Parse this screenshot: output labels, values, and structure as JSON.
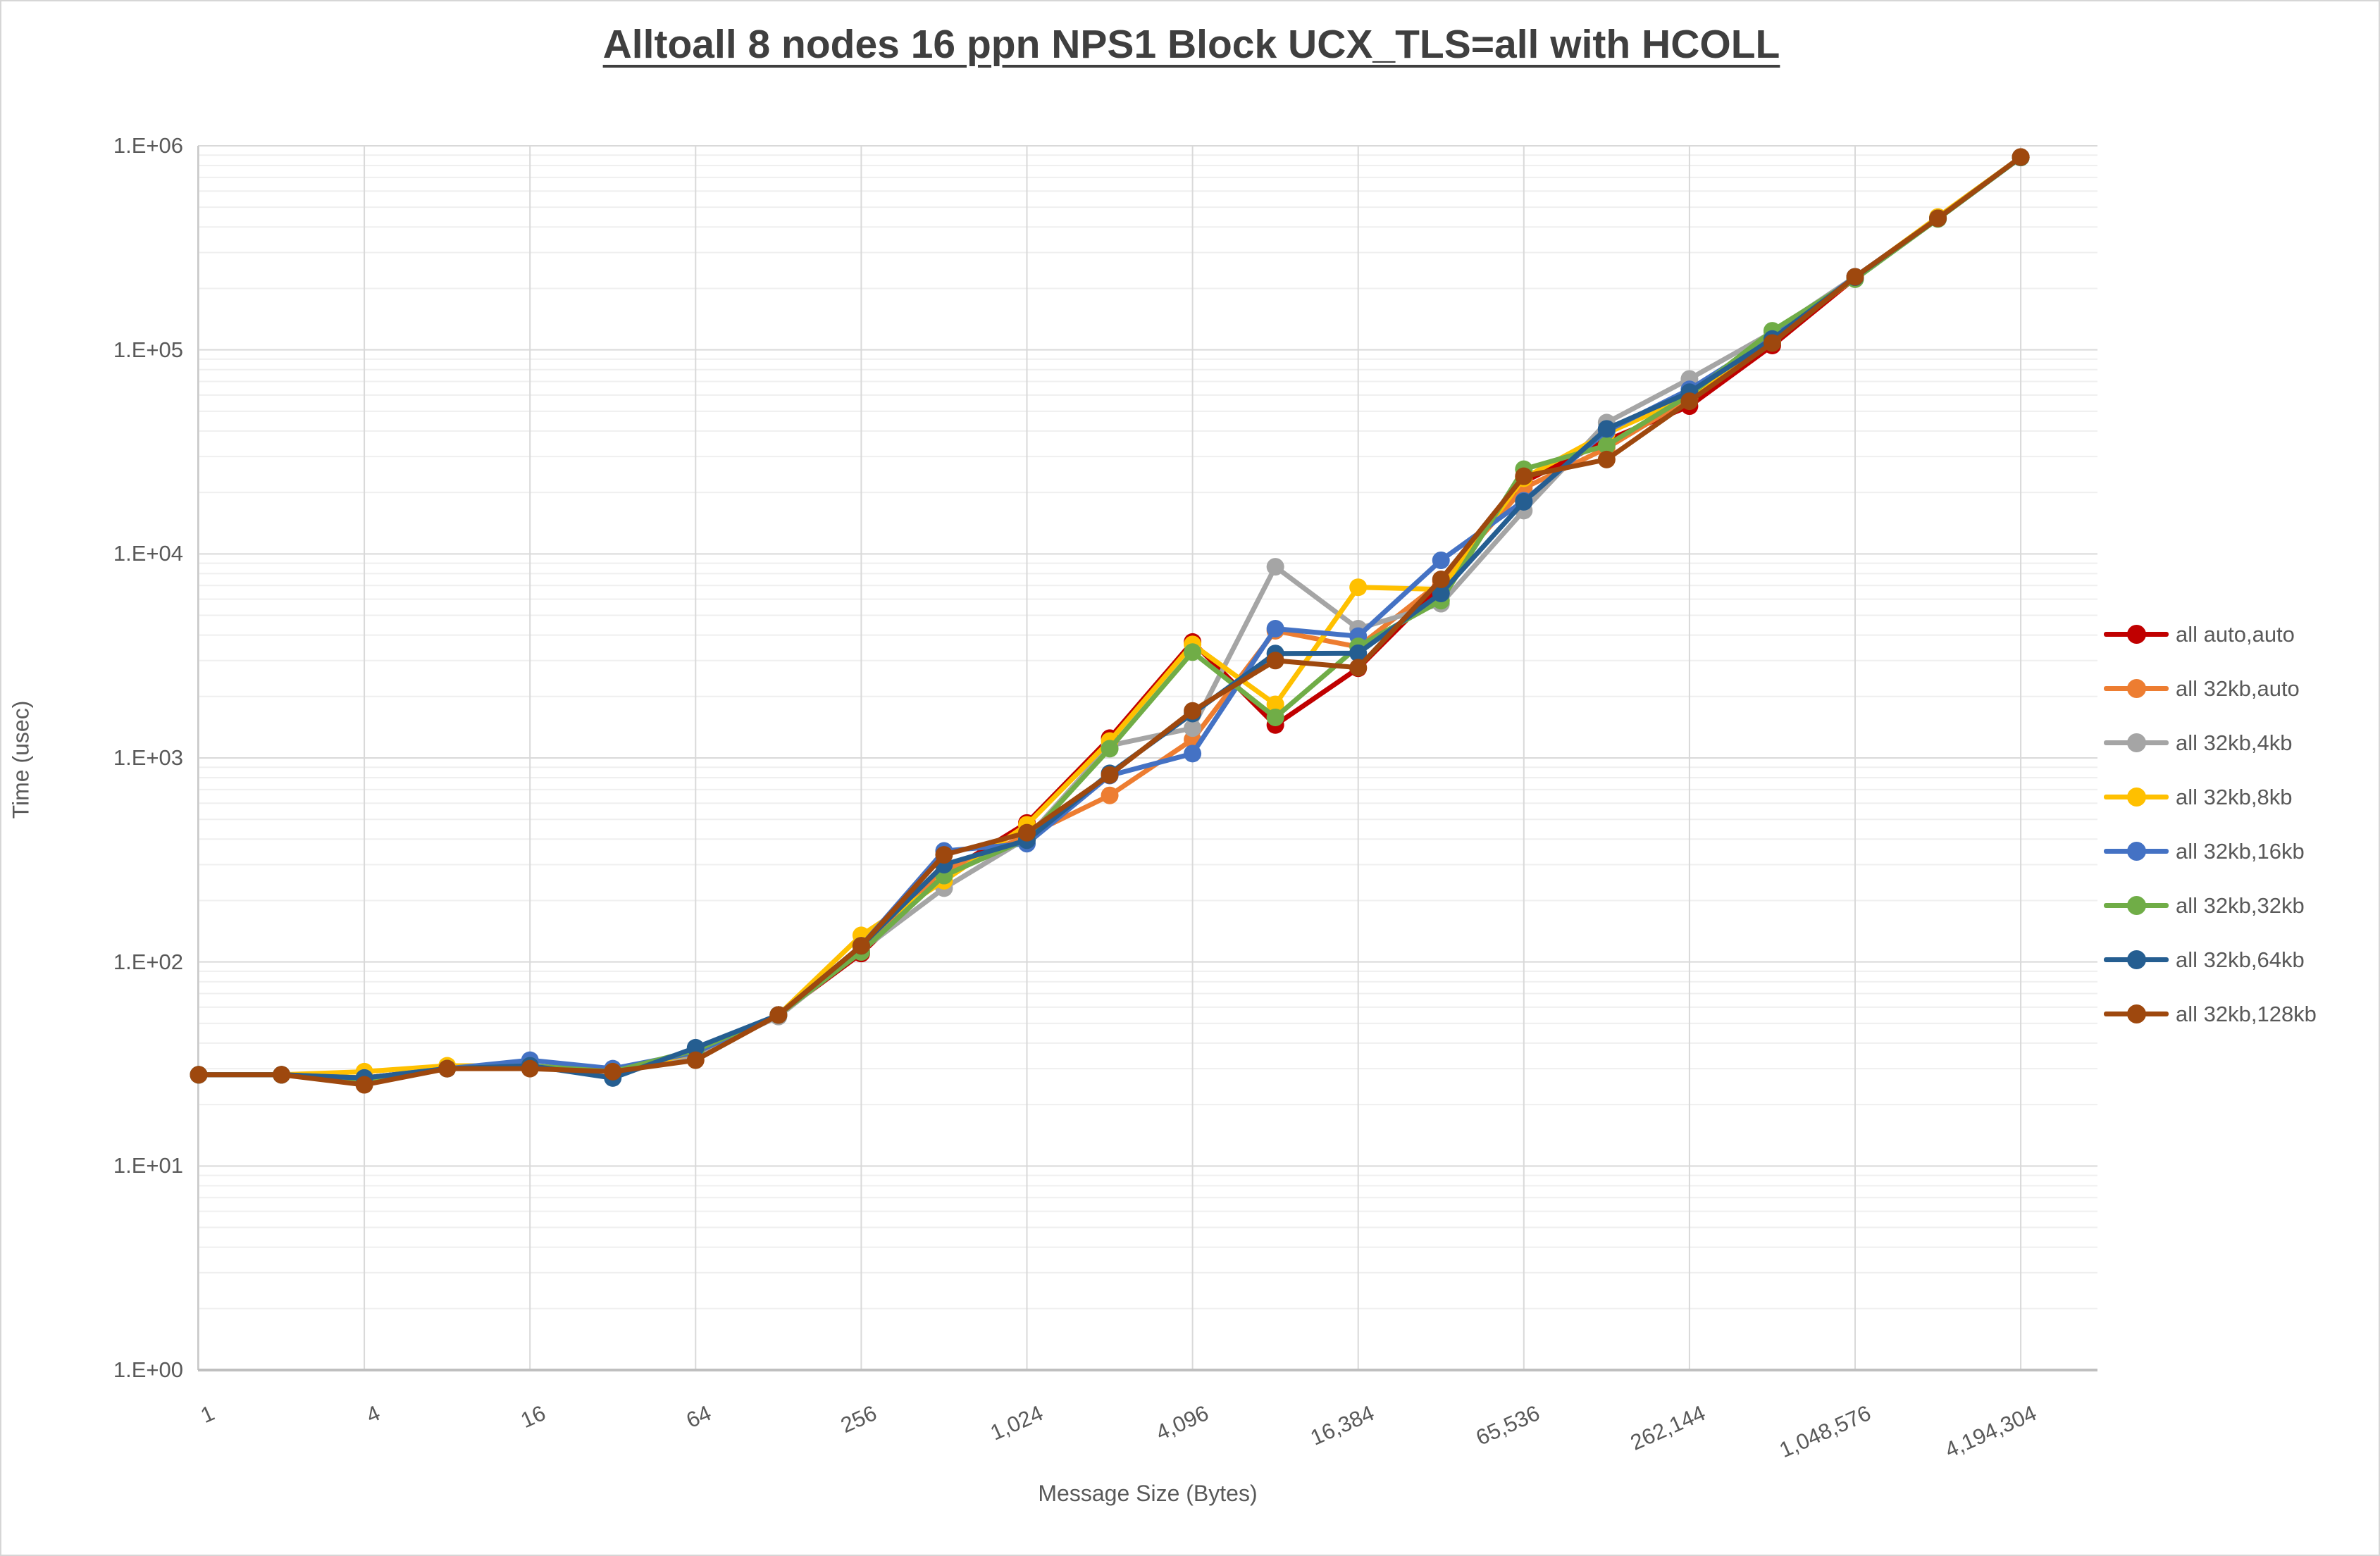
{
  "chart_data": {
    "type": "line",
    "title": "Alltoall 8 nodes 16 ppn NPS1 Block UCX_TLS=all with HCOLL",
    "xlabel": "Message Size (Bytes)",
    "ylabel": "Time (usec)",
    "x_scale": "log2",
    "y_scale": "log10",
    "ylim": [
      1,
      1000000
    ],
    "grid": "major-horizontal-minor-log-and-major-vertical",
    "legend_position": "right",
    "x": [
      1,
      2,
      4,
      8,
      16,
      32,
      64,
      128,
      256,
      512,
      1024,
      2048,
      4096,
      8192,
      16384,
      32768,
      65536,
      131072,
      262144,
      524288,
      1048576,
      2097152,
      4194304
    ],
    "x_tick_labels": [
      "1",
      "4",
      "16",
      "64",
      "256",
      "1,024",
      "4,096",
      "16,384",
      "65,536",
      "262,144",
      "1,048,576",
      "4,194,304"
    ],
    "y_tick_labels": [
      "1.E+00",
      "1.E+01",
      "1.E+02",
      "1.E+03",
      "1.E+04",
      "1.E+05",
      "1.E+06"
    ],
    "series": [
      {
        "name": "all auto,auto",
        "color": "#C00000",
        "values": [
          28,
          28,
          27,
          30,
          31,
          29,
          36,
          55,
          110,
          270,
          480,
          1250,
          3700,
          1450,
          2750,
          7000,
          22500,
          36000,
          53000,
          105000,
          225000,
          440000,
          880000
        ]
      },
      {
        "name": "all 32kb,auto",
        "color": "#ED7D31",
        "values": [
          28,
          28,
          27,
          30,
          31,
          29,
          36,
          55,
          118,
          280,
          415,
          655,
          1230,
          4200,
          3500,
          7300,
          21000,
          33000,
          58000,
          111000,
          225000,
          440000,
          880000
        ]
      },
      {
        "name": "all 32kb,4kb",
        "color": "#A5A5A5",
        "values": [
          28,
          28,
          26,
          30,
          31,
          29,
          35,
          54,
          114,
          230,
          405,
          1150,
          1400,
          8650,
          4300,
          5700,
          16300,
          44000,
          72000,
          122000,
          228000,
          442000,
          878000
        ]
      },
      {
        "name": "all 32kb,8kb",
        "color": "#FFC000",
        "values": [
          28,
          28,
          29,
          31,
          31,
          29,
          36,
          55,
          135,
          250,
          470,
          1210,
          3600,
          1830,
          6860,
          6700,
          23500,
          39000,
          59000,
          112000,
          226000,
          448000,
          880000
        ]
      },
      {
        "name": "all 32kb,16kb",
        "color": "#4472C4",
        "values": [
          28,
          28,
          27,
          30,
          33,
          30,
          36,
          55,
          120,
          350,
          380,
          820,
          1050,
          4300,
          3950,
          9300,
          18200,
          40000,
          64000,
          115000,
          228000,
          440000,
          880000
        ]
      },
      {
        "name": "all 32kb,32kb",
        "color": "#70AD47",
        "values": [
          28,
          28,
          26,
          30,
          31,
          29,
          37,
          55,
          112,
          265,
          400,
          1110,
          3300,
          1580,
          3520,
          5900,
          26000,
          34000,
          60000,
          124000,
          222000,
          438000,
          876000
        ]
      },
      {
        "name": "all 32kb,64kb",
        "color": "#255E91",
        "values": [
          28,
          28,
          27,
          30,
          31,
          27,
          38,
          55,
          120,
          300,
          395,
          840,
          1650,
          3250,
          3260,
          6400,
          18000,
          41000,
          62000,
          113000,
          227000,
          441000,
          879000
        ]
      },
      {
        "name": "all 32kb,128kb",
        "color": "#9E480E",
        "values": [
          28,
          28,
          25,
          30,
          30,
          29,
          33,
          55,
          120,
          335,
          430,
          825,
          1700,
          3000,
          2770,
          7500,
          24000,
          29000,
          56000,
          108000,
          228000,
          441000,
          881000
        ]
      }
    ]
  }
}
